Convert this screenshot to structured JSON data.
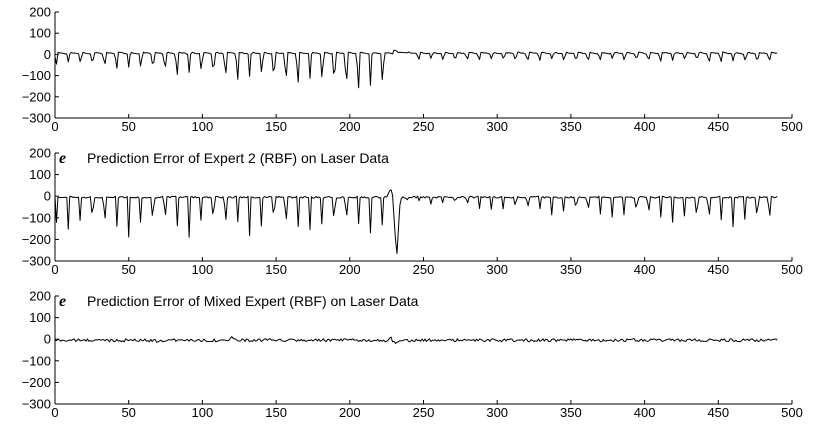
{
  "chart_data": [
    {
      "type": "line",
      "title": "",
      "y_symbol": "",
      "xlabel": "",
      "ylabel": "",
      "xlim": [
        0,
        500
      ],
      "ylim": [
        -300,
        200
      ],
      "x_ticks": [
        0,
        50,
        100,
        150,
        200,
        250,
        300,
        350,
        400,
        450,
        500
      ],
      "y_ticks": [
        200,
        100,
        0,
        -100,
        -200,
        -300
      ],
      "grid": false,
      "series": [
        {
          "x_start": 0,
          "x_step": 1,
          "n_points": 491,
          "shape": "periodic dips: period ~8.2, dip depth ramps from about -40 at x=0 to -175 at x=220, spike to +20 near x=232, then dips of about -30 through x=490",
          "points": [
            [
              0,
              0
            ],
            [
              2,
              10
            ],
            [
              6,
              5
            ],
            [
              8,
              -28
            ],
            [
              9,
              10
            ],
            [
              100,
              -45
            ],
            [
              160,
              -75
            ],
            [
              200,
              -120
            ],
            [
              220,
              -175
            ],
            [
              232,
              20
            ],
            [
              240,
              10
            ],
            [
              300,
              -25
            ],
            [
              400,
              -30
            ],
            [
              490,
              -45
            ]
          ]
        }
      ]
    },
    {
      "type": "line",
      "title": "Prediction Error of  Expert 2 (RBF) on Laser Data",
      "y_symbol": "e",
      "xlabel": "",
      "ylabel": "",
      "xlim": [
        0,
        500
      ],
      "ylim": [
        -300,
        200
      ],
      "x_ticks": [
        0,
        50,
        100,
        150,
        200,
        250,
        300,
        350,
        400,
        450,
        500
      ],
      "y_ticks": [
        200,
        100,
        0,
        -100,
        -200,
        -300
      ],
      "grid": false,
      "series": [
        {
          "x_start": 0,
          "x_step": 1,
          "n_points": 491,
          "shape": "periodic dips: period ~8.2, depth about -160 to -200 through x=225, spike to +30 near x=228, dip to -265 near x=232, then dips of -30 to -170 deepening through x=490",
          "points": [
            [
              0,
              0
            ],
            [
              8,
              -160
            ],
            [
              50,
              -175
            ],
            [
              100,
              -190
            ],
            [
              150,
              -200
            ],
            [
              200,
              -190
            ],
            [
              228,
              30
            ],
            [
              232,
              -265
            ],
            [
              240,
              -20
            ],
            [
              300,
              -60
            ],
            [
              350,
              -110
            ],
            [
              400,
              -140
            ],
            [
              450,
              -160
            ],
            [
              488,
              -180
            ]
          ]
        }
      ]
    },
    {
      "type": "line",
      "title": "Prediction Error of  Mixed Expert (RBF) on Laser Data",
      "y_symbol": "e",
      "xlabel": "",
      "ylabel": "",
      "xlim": [
        0,
        500
      ],
      "ylim": [
        -300,
        200
      ],
      "x_ticks": [
        0,
        50,
        100,
        150,
        200,
        250,
        300,
        350,
        400,
        450,
        500
      ],
      "y_ticks": [
        200,
        100,
        0,
        -100,
        -200,
        -300
      ],
      "grid": false,
      "series": [
        {
          "x_start": 0,
          "x_step": 1,
          "n_points": 491,
          "shape": "small noise around -5 with amplitude about +/-10, spikes near x=70 (-15), x=120 (+12), x=230 (+10 then -20)",
          "points": [
            [
              0,
              -5
            ],
            [
              70,
              -15
            ],
            [
              120,
              12
            ],
            [
              228,
              10
            ],
            [
              232,
              -20
            ],
            [
              300,
              -5
            ],
            [
              400,
              -5
            ],
            [
              490,
              -5
            ]
          ]
        }
      ]
    }
  ]
}
